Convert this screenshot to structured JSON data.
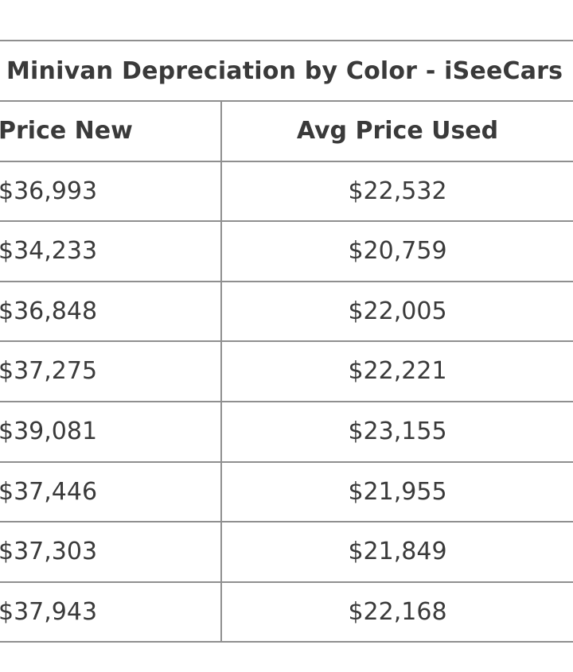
{
  "table": {
    "title": "Minivan Depreciation by Color - iSeeCars",
    "header": [
      "Price New",
      "Avg Price Used"
    ],
    "rows": [
      [
        "$36,993",
        "$22,532"
      ],
      [
        "$34,233",
        "$20,759"
      ],
      [
        "$36,848",
        "$22,005"
      ],
      [
        "$37,275",
        "$22,221"
      ],
      [
        "$39,081",
        "$23,155"
      ],
      [
        "$37,446",
        "$21,955"
      ],
      [
        "$37,303",
        "$21,849"
      ],
      [
        "$37,943",
        "$22,168"
      ]
    ]
  }
}
